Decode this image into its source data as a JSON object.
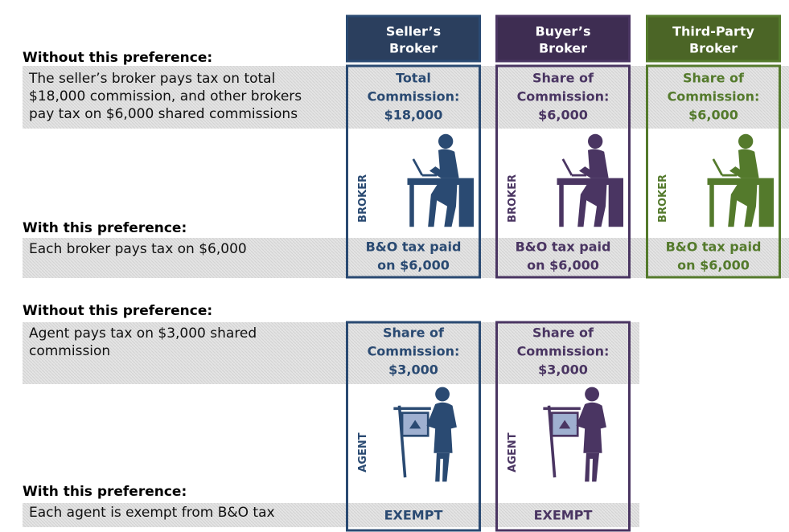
{
  "headers": [
    [
      "Seller’s",
      "Broker"
    ],
    [
      "Buyer’s",
      "Broker"
    ],
    [
      "Third-Party",
      "Broker"
    ]
  ],
  "broker_section": {
    "without_label": "Without this preference:",
    "without_text": [
      "The seller’s broker pays tax on total",
      "$18,000 commission, and other brokers",
      "pay tax on $6,000 shared commissions"
    ],
    "cells": [
      [
        "Total",
        "Commission:",
        "$18,000"
      ],
      [
        "Share of",
        "Commission:",
        "$6,000"
      ],
      [
        "Share of",
        "Commission:",
        "$6,000"
      ]
    ],
    "icon_label": "BROKER",
    "with_label": "With this preference:",
    "with_text": "Each broker pays tax on $6,000",
    "with_cells": [
      [
        "B&O tax paid",
        "on $6,000"
      ],
      [
        "B&O tax paid",
        "on $6,000"
      ],
      [
        "B&O tax paid",
        "on $6,000"
      ]
    ]
  },
  "agent_section": {
    "without_label": "Without this preference:",
    "without_text": [
      "Agent pays tax on $3,000 shared",
      "commission"
    ],
    "cells": [
      [
        "Share of",
        "Commission:",
        "$3,000"
      ],
      [
        "Share of",
        "Commission:",
        "$3,000"
      ]
    ],
    "icon_label": "AGENT",
    "with_label": "With this preference:",
    "with_text": "Each agent is exempt from B&O tax",
    "with_cells": [
      "EXEMPT",
      "EXEMPT"
    ]
  }
}
